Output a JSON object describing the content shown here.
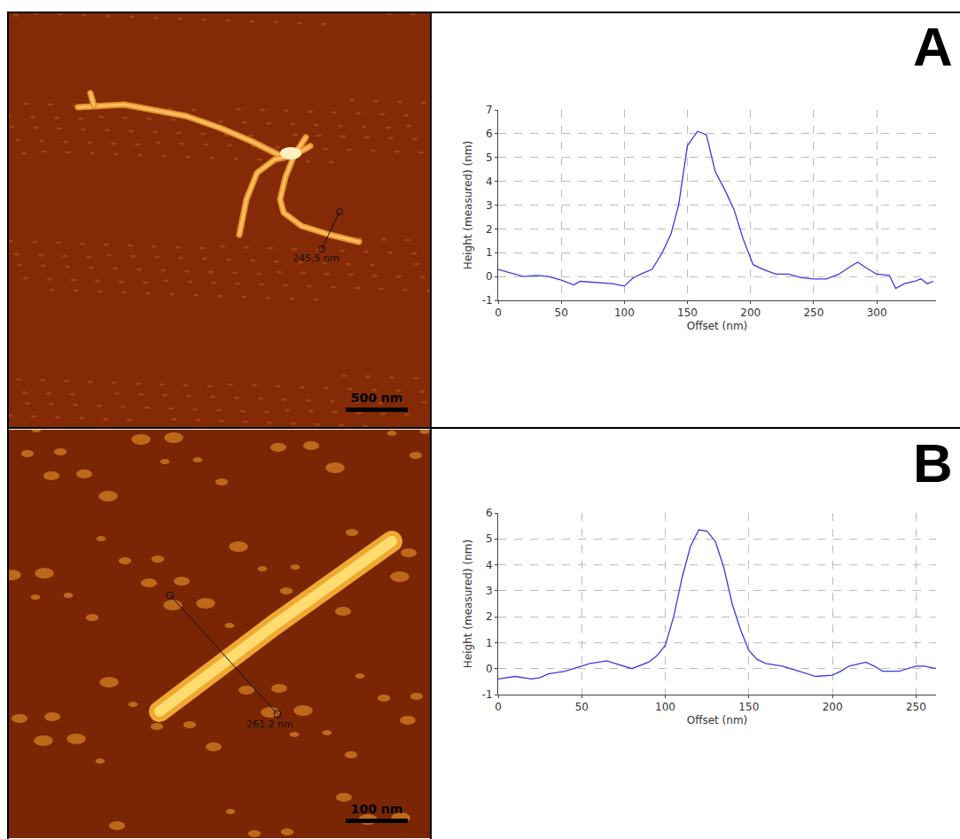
{
  "chart_data": [
    {
      "type": "line",
      "panel_label": "A",
      "image": {
        "measurement_label": "245.5 nm",
        "scale_bar": "500 nm"
      },
      "x_label": "Offset (nm)",
      "y_label": "Height (measured) (nm)",
      "color": "#3a3adf",
      "grid": true,
      "x": [
        0,
        10,
        20,
        30,
        40,
        50,
        60,
        65,
        80,
        90,
        100,
        107,
        115,
        122,
        130,
        137,
        143,
        150,
        158,
        165,
        172,
        180,
        187,
        194,
        202,
        210,
        220,
        230,
        240,
        250,
        260,
        270,
        280,
        285,
        292,
        300,
        310,
        315,
        322,
        330,
        335,
        340,
        345
      ],
      "values": [
        0.3,
        0.15,
        0.0,
        0.05,
        0.0,
        -0.15,
        -0.35,
        -0.2,
        -0.25,
        -0.3,
        -0.4,
        -0.05,
        0.15,
        0.3,
        1.0,
        1.8,
        3.0,
        5.5,
        6.1,
        5.95,
        4.4,
        3.6,
        2.8,
        1.6,
        0.5,
        0.3,
        0.1,
        0.1,
        -0.05,
        -0.1,
        -0.1,
        0.1,
        0.45,
        0.6,
        0.35,
        0.1,
        0.05,
        -0.5,
        -0.3,
        -0.2,
        -0.1,
        -0.3,
        -0.2
      ],
      "xlim": [
        0,
        347
      ],
      "xticks": [
        0,
        50,
        100,
        150,
        200,
        250,
        300
      ],
      "ylim": [
        -1,
        7
      ],
      "yticks": [
        -1,
        0,
        1,
        2,
        3,
        4,
        5,
        6,
        7
      ]
    },
    {
      "type": "line",
      "panel_label": "B",
      "image": {
        "measurement_label": "261.2 nm",
        "scale_bar": "100 nm"
      },
      "x_label": "Offset (nm)",
      "y_label": "Height (measured) (nm)",
      "color": "#3a3adf",
      "grid": true,
      "x": [
        0,
        10,
        20,
        25,
        30,
        40,
        50,
        55,
        60,
        65,
        70,
        80,
        90,
        95,
        100,
        105,
        110,
        115,
        120,
        125,
        130,
        135,
        140,
        145,
        150,
        155,
        160,
        170,
        180,
        190,
        200,
        205,
        210,
        220,
        225,
        230,
        240,
        250,
        255,
        262
      ],
      "values": [
        -0.4,
        -0.3,
        -0.4,
        -0.35,
        -0.2,
        -0.1,
        0.1,
        0.2,
        0.25,
        0.3,
        0.2,
        0.0,
        0.25,
        0.5,
        0.9,
        2.0,
        3.5,
        4.7,
        5.35,
        5.3,
        4.9,
        3.9,
        2.5,
        1.5,
        0.7,
        0.35,
        0.2,
        0.1,
        -0.1,
        -0.3,
        -0.25,
        -0.1,
        0.1,
        0.25,
        0.1,
        -0.1,
        -0.1,
        0.1,
        0.1,
        0.0
      ],
      "xlim": [
        0,
        262
      ],
      "xticks": [
        0,
        50,
        100,
        150,
        200,
        250
      ],
      "ylim": [
        -1,
        6
      ],
      "yticks": [
        -1,
        0,
        1,
        2,
        3,
        4,
        5,
        6
      ]
    }
  ]
}
